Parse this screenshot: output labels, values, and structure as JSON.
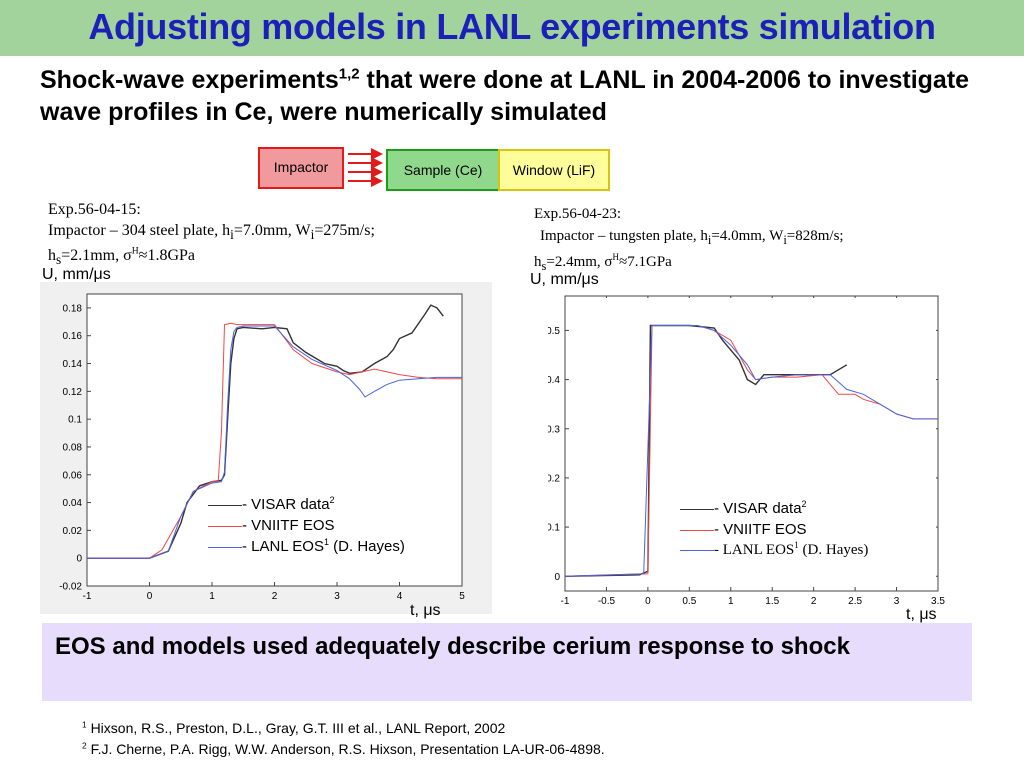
{
  "title": "Adjusting models in LANL experiments simulation",
  "subtitle_pre": "Shock-wave experiments",
  "subtitle_sup": "1,2",
  "subtitle_post": " that were done at LANL in 2004-2006 to investigate wave profiles in Ce, were numerically simulated",
  "setup": {
    "impactor": "Impactor",
    "sample": "Sample (Ce)",
    "window": "Window (LiF)"
  },
  "exp1": {
    "name": "Exp.56-04-15:",
    "impactor_text": "Impactor – 304 steel plate, ",
    "h_i": "=7.0mm, ",
    "w_i": "=275m/s;",
    "h_s": "=2.1mm, ",
    "sigma": "≈1.8GPa"
  },
  "exp2": {
    "name": "Exp.56-04-23:",
    "impactor_text": "Impactor – tungsten plate, ",
    "h_i": "=4.0mm, ",
    "w_i": "=828m/s;",
    "h_s": "=2.4mm, ",
    "sigma": "≈7.1GPa"
  },
  "y_unit": "U, mm/μs",
  "x_unit": "t, μs",
  "colors": {
    "visar": "#333333",
    "vniitf": "#f04848",
    "lanl": "#4a63e0"
  },
  "legend": {
    "visar": "- VISAR data",
    "visar_sup": "2",
    "vniitf": "-  VNIITF EOS",
    "lanl": "- LANL EOS",
    "lanl_sup": "1",
    "lanl_post": " (D. Hayes)"
  },
  "conclusion": "EOS and models used adequately describe cerium response to shock",
  "refs": [
    {
      "num": "1",
      "text": "Hixson, R.S., Preston, D.L., Gray, G.T. III et al., LANL Report, 2002"
    },
    {
      "num": "2",
      "text": "F.J. Cherne, P.A. Rigg, W.W. Anderson, R.S. Hixson, Presentation LA-UR-06-4898."
    }
  ],
  "chart_data": [
    {
      "type": "line",
      "xlim": [
        -1,
        5
      ],
      "ylim": [
        -0.02,
        0.19
      ],
      "xticks": [
        "-1",
        "0",
        "1",
        "2",
        "3",
        "4",
        "5"
      ],
      "yticks": [
        "-0.02",
        "0",
        "0.02",
        "0.04",
        "0.06",
        "0.08",
        "0.1",
        "0.12",
        "0.14",
        "0.16",
        "0.18"
      ],
      "series": [
        {
          "name": "VISAR data",
          "key": "visar",
          "x": [
            -1,
            0,
            0.3,
            0.5,
            0.6,
            0.8,
            1.0,
            1.15,
            1.2,
            1.25,
            1.3,
            1.35,
            1.4,
            1.5,
            1.8,
            2.0,
            2.2,
            2.3,
            2.5,
            2.8,
            3.0,
            3.1,
            3.2,
            3.4,
            3.6,
            3.8,
            3.9,
            4.0,
            4.2,
            4.4,
            4.5,
            4.6,
            4.7
          ],
          "y": [
            0,
            0,
            0.005,
            0.025,
            0.04,
            0.052,
            0.055,
            0.056,
            0.06,
            0.1,
            0.14,
            0.158,
            0.165,
            0.166,
            0.165,
            0.166,
            0.165,
            0.155,
            0.148,
            0.14,
            0.138,
            0.135,
            0.133,
            0.134,
            0.14,
            0.145,
            0.15,
            0.158,
            0.162,
            0.175,
            0.182,
            0.18,
            0.174
          ]
        },
        {
          "name": "VNIITF EOS",
          "key": "vniitf",
          "x": [
            -1,
            0,
            0.2,
            0.5,
            0.7,
            1.0,
            1.1,
            1.15,
            1.2,
            1.3,
            1.4,
            1.5,
            2.0,
            2.3,
            2.6,
            3.0,
            3.2,
            3.4,
            3.6,
            3.8,
            4.0,
            4.3,
            4.6,
            5.0
          ],
          "y": [
            0,
            0,
            0.006,
            0.03,
            0.048,
            0.055,
            0.056,
            0.09,
            0.168,
            0.169,
            0.168,
            0.168,
            0.168,
            0.15,
            0.14,
            0.134,
            0.132,
            0.134,
            0.136,
            0.134,
            0.132,
            0.13,
            0.129,
            0.129
          ]
        },
        {
          "name": "LANL EOS",
          "key": "lanl",
          "x": [
            -1,
            0,
            0.3,
            0.5,
            0.7,
            1.0,
            1.15,
            1.2,
            1.25,
            1.3,
            1.35,
            1.4,
            1.5,
            2.0,
            2.3,
            2.6,
            3.0,
            3.2,
            3.35,
            3.45,
            3.6,
            3.8,
            4.0,
            4.3,
            4.6,
            5.0
          ],
          "y": [
            0,
            0,
            0.005,
            0.03,
            0.048,
            0.054,
            0.055,
            0.062,
            0.11,
            0.15,
            0.163,
            0.166,
            0.167,
            0.167,
            0.152,
            0.143,
            0.135,
            0.129,
            0.122,
            0.116,
            0.12,
            0.125,
            0.128,
            0.129,
            0.13,
            0.13
          ]
        }
      ]
    },
    {
      "type": "line",
      "xlim": [
        -1,
        3.5
      ],
      "ylim": [
        -0.03,
        0.57
      ],
      "xticks": [
        "-1",
        "-0.5",
        "0",
        "0.5",
        "1",
        "1.5",
        "2",
        "2.5",
        "3",
        "3.5"
      ],
      "yticks": [
        "0",
        "0.1",
        "0.2",
        "0.3",
        "0.4",
        "0.5"
      ],
      "series": [
        {
          "name": "VISAR data",
          "key": "visar",
          "x": [
            -1,
            -0.1,
            0,
            0.03,
            0.1,
            0.5,
            0.8,
            0.9,
            1.0,
            1.1,
            1.2,
            1.3,
            1.4,
            1.6,
            1.8,
            2.0,
            2.2,
            2.4
          ],
          "y": [
            0,
            0.003,
            0.01,
            0.51,
            0.51,
            0.51,
            0.505,
            0.48,
            0.46,
            0.44,
            0.4,
            0.39,
            0.41,
            0.41,
            0.41,
            0.41,
            0.41,
            0.43
          ]
        },
        {
          "name": "VNIITF EOS",
          "key": "vniitf",
          "x": [
            -1,
            0,
            0.05,
            0.1,
            0.6,
            0.8,
            1.0,
            1.1,
            1.2,
            1.3,
            1.5,
            1.8,
            2.1,
            2.3,
            2.5,
            2.6,
            2.8,
            3.0,
            3.2,
            3.5
          ],
          "y": [
            0,
            0.005,
            0.51,
            0.51,
            0.51,
            0.5,
            0.48,
            0.45,
            0.42,
            0.4,
            0.405,
            0.405,
            0.41,
            0.37,
            0.37,
            0.36,
            0.35,
            0.33,
            0.32,
            0.32
          ]
        },
        {
          "name": "LANL EOS",
          "key": "lanl",
          "x": [
            -1,
            -0.05,
            0.05,
            0.1,
            0.6,
            0.8,
            1.0,
            1.2,
            1.3,
            1.5,
            1.8,
            2.0,
            2.2,
            2.4,
            2.6,
            2.8,
            3.0,
            3.2,
            3.5
          ],
          "y": [
            0,
            0.005,
            0.51,
            0.51,
            0.51,
            0.5,
            0.47,
            0.43,
            0.4,
            0.405,
            0.41,
            0.41,
            0.41,
            0.38,
            0.37,
            0.35,
            0.33,
            0.32,
            0.32
          ]
        }
      ]
    }
  ]
}
